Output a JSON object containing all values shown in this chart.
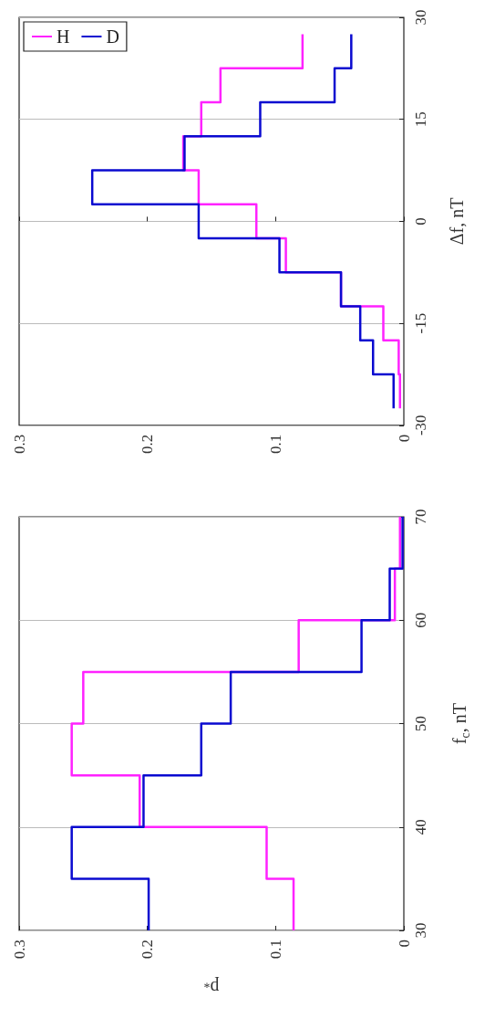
{
  "chart_data": [
    {
      "type": "histogram",
      "orientation": "horizontal",
      "xlabel": "p$_{*}$",
      "ylabel": "f$_{c}$, nT",
      "bins": [
        30,
        35,
        40,
        45,
        50,
        55,
        60,
        65,
        70
      ],
      "series": [
        {
          "color": "#ff22ff",
          "values": [
            0.086,
            0.107,
            0.206,
            0.259,
            0.25,
            0.082,
            0.007,
            0.003
          ]
        },
        {
          "color": "#0a0ad0",
          "values": [
            0.199,
            0.259,
            0.203,
            0.158,
            0.135,
            0.033,
            0.011,
            0.001
          ]
        }
      ],
      "ylim": [
        30,
        70
      ],
      "yticks": [
        30,
        40,
        50,
        60,
        70
      ],
      "xlim": [
        0.3,
        0
      ],
      "xticks": [
        0,
        0.1,
        0.2,
        0.3
      ],
      "grid": "y",
      "legend": false,
      "line_style": "solid"
    },
    {
      "type": "histogram",
      "orientation": "horizontal",
      "ylabel": "Δf, nT",
      "bins": [
        -27.5,
        -22.5,
        -17.5,
        -12.5,
        -7.5,
        -2.5,
        2.5,
        7.5,
        12.5,
        17.5,
        22.5,
        27.5
      ],
      "series": [
        {
          "name": "H",
          "color": "#ff22ff",
          "values": [
            0.003,
            0.004,
            0.016,
            0.049,
            0.092,
            0.115,
            0.16,
            0.172,
            0.158,
            0.143,
            0.079
          ]
        },
        {
          "name": "D",
          "color": "#0a0ad0",
          "values": [
            0.008,
            0.024,
            0.034,
            0.049,
            0.097,
            0.16,
            0.243,
            0.171,
            0.112,
            0.054,
            0.041
          ]
        }
      ],
      "ylim": [
        -30,
        30
      ],
      "yticks": [
        -30,
        -15,
        0,
        15,
        30
      ],
      "xlim": [
        0.3,
        0
      ],
      "xticks": [
        0,
        0.1,
        0.2,
        0.3
      ],
      "grid": "y",
      "legend": "top left",
      "line_style": "solid"
    }
  ]
}
